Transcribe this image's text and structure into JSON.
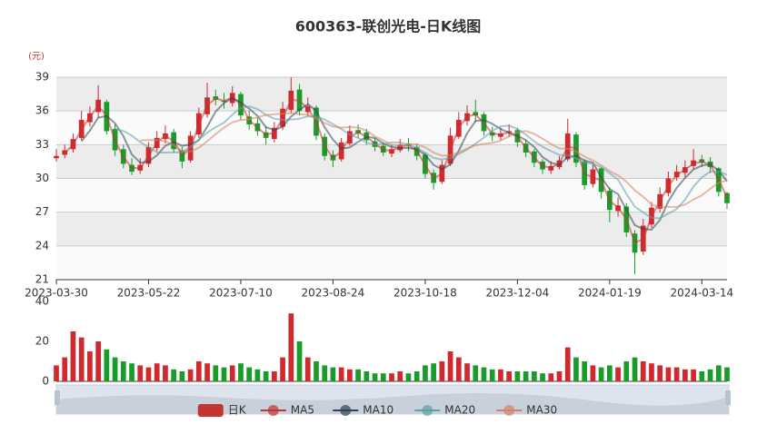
{
  "chart_data": {
    "type": "candlestick",
    "title": "600363-联创光电-日K线图",
    "y_unit": "(元)",
    "up_color": "#d0292e",
    "down_color": "#1a9c2a",
    "categories": [
      "2023-03-30",
      null,
      null,
      null,
      null,
      null,
      null,
      null,
      null,
      null,
      null,
      "2023-05-22",
      null,
      null,
      null,
      null,
      null,
      null,
      null,
      null,
      null,
      null,
      "2023-07-10",
      null,
      null,
      null,
      null,
      null,
      null,
      null,
      null,
      null,
      null,
      "2023-08-24",
      null,
      null,
      null,
      null,
      null,
      null,
      null,
      null,
      null,
      null,
      "2023-10-18",
      null,
      null,
      null,
      null,
      null,
      null,
      null,
      null,
      null,
      null,
      "2023-12-04",
      null,
      null,
      null,
      null,
      null,
      null,
      null,
      null,
      null,
      null,
      "2024-01-19",
      null,
      null,
      null,
      null,
      null,
      null,
      null,
      null,
      null,
      null,
      "2024-03-14",
      null,
      null,
      null
    ],
    "ylim": [
      21,
      39
    ],
    "yticks": [
      21,
      24,
      27,
      30,
      33,
      36,
      39
    ],
    "series": [
      {
        "name": "日K",
        "color": "#c23531",
        "values": [
          [
            31.8,
            32.0,
            31.5,
            32.6
          ],
          [
            32.1,
            32.5,
            31.8,
            33.0
          ],
          [
            32.6,
            33.5,
            32.3,
            34.0
          ],
          [
            33.6,
            35.2,
            33.4,
            36.0
          ],
          [
            35.0,
            35.8,
            34.6,
            36.4
          ],
          [
            35.9,
            37.0,
            35.4,
            38.3
          ],
          [
            36.8,
            34.2,
            33.9,
            37.0
          ],
          [
            34.4,
            32.5,
            32.0,
            34.8
          ],
          [
            32.6,
            31.3,
            30.9,
            33.0
          ],
          [
            31.2,
            30.6,
            30.3,
            31.8
          ],
          [
            30.7,
            31.2,
            30.4,
            31.8
          ],
          [
            31.3,
            32.8,
            31.0,
            33.2
          ],
          [
            32.7,
            33.6,
            32.4,
            34.2
          ],
          [
            33.5,
            34.0,
            33.1,
            34.7
          ],
          [
            34.1,
            32.6,
            32.3,
            34.4
          ],
          [
            32.5,
            31.5,
            30.9,
            32.8
          ],
          [
            31.6,
            33.8,
            31.4,
            34.2
          ],
          [
            33.9,
            35.8,
            33.6,
            36.3
          ],
          [
            35.7,
            37.2,
            35.4,
            38.5
          ],
          [
            37.3,
            37.0,
            36.5,
            37.9
          ],
          [
            36.9,
            36.8,
            36.2,
            37.6
          ],
          [
            36.7,
            37.6,
            36.4,
            38.2
          ],
          [
            37.5,
            35.6,
            35.2,
            37.7
          ],
          [
            35.5,
            34.8,
            34.3,
            36.0
          ],
          [
            34.9,
            34.2,
            33.8,
            35.4
          ],
          [
            34.1,
            33.6,
            33.0,
            34.6
          ],
          [
            33.5,
            34.5,
            33.2,
            35.0
          ],
          [
            34.6,
            36.2,
            34.3,
            36.8
          ],
          [
            36.1,
            37.8,
            35.8,
            39.0
          ],
          [
            37.9,
            36.0,
            35.6,
            38.4
          ],
          [
            35.9,
            36.4,
            35.5,
            37.2
          ],
          [
            36.3,
            33.8,
            33.4,
            36.5
          ],
          [
            33.7,
            32.0,
            31.6,
            34.0
          ],
          [
            32.1,
            31.6,
            31.0,
            32.5
          ],
          [
            31.7,
            33.2,
            31.5,
            33.6
          ],
          [
            33.1,
            34.2,
            32.9,
            34.7
          ],
          [
            34.3,
            34.0,
            33.6,
            34.8
          ],
          [
            34.1,
            33.4,
            33.0,
            34.4
          ],
          [
            33.3,
            32.8,
            32.4,
            33.6
          ],
          [
            32.9,
            32.3,
            32.0,
            33.2
          ],
          [
            32.2,
            32.6,
            31.9,
            33.0
          ],
          [
            32.5,
            33.0,
            32.3,
            33.5
          ],
          [
            33.1,
            32.9,
            32.4,
            33.6
          ],
          [
            32.8,
            32.0,
            31.6,
            33.1
          ],
          [
            32.1,
            30.4,
            30.0,
            32.3
          ],
          [
            30.5,
            29.6,
            29.0,
            30.8
          ],
          [
            29.7,
            31.2,
            29.5,
            31.6
          ],
          [
            31.3,
            33.8,
            31.1,
            34.5
          ],
          [
            33.7,
            35.2,
            33.5,
            35.9
          ],
          [
            35.1,
            35.8,
            34.7,
            36.5
          ],
          [
            35.9,
            35.6,
            35.0,
            37.0
          ],
          [
            35.7,
            34.2,
            33.8,
            35.9
          ],
          [
            34.1,
            33.8,
            33.3,
            34.6
          ],
          [
            33.7,
            34.0,
            33.4,
            34.5
          ],
          [
            34.1,
            34.2,
            33.7,
            34.8
          ],
          [
            34.3,
            33.2,
            32.8,
            34.5
          ],
          [
            33.1,
            32.3,
            31.9,
            33.4
          ],
          [
            32.4,
            31.4,
            31.0,
            32.6
          ],
          [
            31.5,
            30.8,
            30.4,
            31.7
          ],
          [
            30.7,
            31.1,
            30.4,
            31.5
          ],
          [
            31.0,
            31.6,
            30.8,
            32.0
          ],
          [
            31.7,
            34.0,
            31.5,
            35.3
          ],
          [
            33.9,
            31.4,
            31.0,
            34.1
          ],
          [
            31.5,
            29.4,
            29.0,
            31.7
          ],
          [
            29.5,
            30.8,
            29.2,
            31.2
          ],
          [
            30.9,
            28.8,
            28.2,
            31.0
          ],
          [
            28.9,
            27.2,
            26.1,
            29.2
          ],
          [
            27.1,
            27.6,
            26.6,
            28.3
          ],
          [
            27.5,
            25.2,
            24.8,
            27.8
          ],
          [
            25.1,
            23.4,
            21.5,
            25.4
          ],
          [
            23.5,
            25.8,
            23.2,
            26.4
          ],
          [
            25.9,
            27.4,
            25.6,
            27.9
          ],
          [
            27.3,
            28.6,
            27.0,
            29.2
          ],
          [
            28.7,
            30.0,
            28.4,
            30.6
          ],
          [
            30.1,
            30.6,
            29.8,
            31.2
          ],
          [
            30.5,
            31.0,
            30.1,
            31.6
          ],
          [
            31.1,
            31.6,
            30.8,
            32.6
          ],
          [
            31.7,
            31.4,
            31.0,
            32.1
          ],
          [
            31.5,
            31.0,
            30.5,
            31.9
          ],
          [
            30.9,
            28.8,
            28.4,
            31.0
          ],
          [
            28.7,
            27.8,
            27.3,
            28.8
          ]
        ]
      },
      {
        "name": "MA5",
        "color": "#c23531",
        "values": [
          null,
          32.25,
          33.0,
          34.35,
          35.5,
          36.4,
          35.6,
          33.35,
          31.9,
          30.95,
          30.9,
          32.0,
          33.2,
          33.8,
          33.3,
          32.05,
          32.65,
          34.8,
          36.5,
          37.1,
          36.9,
          37.2,
          36.6,
          35.2,
          34.5,
          33.9,
          34.05,
          35.35,
          37.0,
          36.9,
          36.2,
          35.1,
          32.9,
          31.8,
          32.4,
          33.7,
          34.1,
          33.7,
          33.1,
          32.55,
          32.45,
          32.8,
          32.95,
          32.45,
          31.2,
          30.0,
          30.4,
          32.5,
          34.5,
          35.5,
          35.7,
          34.9,
          34.0,
          33.9,
          34.1,
          33.7,
          32.75,
          31.85,
          31.1,
          30.95,
          31.35,
          32.8,
          32.7,
          30.4,
          30.1,
          29.8,
          28.0,
          27.4,
          26.4,
          24.3,
          24.6,
          26.6,
          28.0,
          29.3,
          30.3,
          30.8,
          31.3,
          31.5,
          31.2,
          29.9,
          28.3
        ]
      },
      {
        "name": "MA10",
        "color": "#2f4554",
        "values": [
          null,
          null,
          null,
          33.3,
          34.25,
          35.4,
          35.55,
          34.9,
          33.75,
          32.15,
          31.4,
          31.5,
          32.05,
          32.9,
          33.25,
          32.9,
          33.0,
          33.4,
          34.6,
          35.95,
          36.7,
          37.15,
          36.75,
          36.2,
          35.55,
          34.55,
          34.3,
          34.6,
          35.5,
          36.1,
          36.6,
          36.0,
          34.55,
          33.45,
          32.65,
          32.75,
          33.25,
          33.7,
          33.6,
          33.1,
          32.8,
          32.7,
          32.7,
          32.6,
          32.1,
          31.2,
          30.8,
          31.25,
          32.45,
          34.0,
          35.1,
          35.2,
          34.85,
          34.4,
          34.05,
          33.8,
          33.4,
          32.8,
          31.9,
          31.4,
          31.2,
          31.9,
          32.0,
          31.6,
          31.4,
          30.1,
          29.05,
          28.6,
          27.2,
          25.85,
          25.5,
          25.45,
          26.3,
          27.95,
          29.15,
          30.05,
          30.8,
          31.15,
          31.25,
          30.7,
          29.75
        ]
      },
      {
        "name": "MA20",
        "color": "#61a0a8",
        "values": [
          null,
          null,
          null,
          null,
          null,
          null,
          null,
          34.39,
          34.21,
          33.8,
          33.23,
          32.8,
          32.31,
          32.29,
          32.3,
          32.33,
          32.79,
          33.44,
          34.07,
          34.56,
          34.96,
          35.67,
          36.26,
          36.4,
          36.17,
          35.66,
          35.3,
          35.21,
          35.24,
          35.3,
          35.53,
          35.47,
          35.24,
          34.83,
          34.4,
          33.89,
          33.6,
          33.17,
          33.03,
          33.07,
          33.21,
          33.19,
          33.0,
          32.71,
          32.29,
          31.83,
          31.67,
          31.84,
          32.16,
          32.57,
          33.09,
          33.63,
          34.23,
          34.63,
          34.69,
          34.4,
          33.9,
          33.3,
          32.81,
          32.43,
          32.09,
          32.06,
          31.8,
          31.39,
          31.3,
          31.01,
          30.46,
          29.89,
          28.63,
          27.49,
          26.97,
          26.49,
          26.46,
          26.86,
          27.29,
          28.11,
          29.29,
          30.09,
          30.6,
          30.63,
          30.31
        ]
      },
      {
        "name": "MA30",
        "color": "#d48265",
        "values": [
          null,
          null,
          null,
          null,
          null,
          null,
          null,
          null,
          null,
          null,
          33.38,
          33.41,
          33.42,
          33.3,
          32.98,
          32.43,
          32.39,
          32.72,
          33.31,
          33.95,
          34.51,
          34.99,
          35.19,
          35.27,
          35.43,
          35.64,
          35.71,
          35.75,
          35.81,
          35.71,
          35.67,
          35.29,
          34.93,
          34.61,
          34.51,
          34.57,
          34.52,
          34.24,
          33.74,
          33.37,
          32.99,
          32.91,
          33.0,
          33.04,
          32.76,
          32.3,
          32.02,
          32.06,
          32.3,
          32.65,
          32.95,
          33.07,
          33.16,
          33.36,
          33.74,
          34.1,
          34.21,
          33.97,
          33.53,
          33.06,
          32.66,
          32.64,
          32.4,
          31.94,
          31.6,
          31.16,
          30.65,
          30.27,
          29.71,
          28.94,
          28.36,
          27.7,
          27.42,
          27.48,
          27.46,
          27.68,
          28.12,
          28.5,
          29.08,
          29.62,
          29.82
        ]
      }
    ],
    "volume": {
      "ylim": [
        0,
        40
      ],
      "yticks": [
        0,
        20,
        40
      ],
      "values": [
        8,
        12,
        25,
        22,
        15,
        20,
        16,
        12,
        10,
        9,
        8,
        7,
        9,
        8,
        6,
        5,
        6,
        10,
        9,
        8,
        7,
        8,
        9,
        7,
        6,
        5,
        5,
        12,
        34,
        20,
        12,
        10,
        8,
        7,
        7,
        6,
        6,
        5,
        4,
        4,
        4,
        5,
        4,
        5,
        8,
        9,
        10,
        15,
        12,
        9,
        8,
        7,
        6,
        6,
        5,
        5,
        5,
        5,
        4,
        4,
        5,
        17,
        12,
        10,
        8,
        7,
        8,
        7,
        10,
        12,
        10,
        9,
        8,
        7,
        7,
        6,
        6,
        5,
        6,
        8,
        7
      ]
    }
  }
}
